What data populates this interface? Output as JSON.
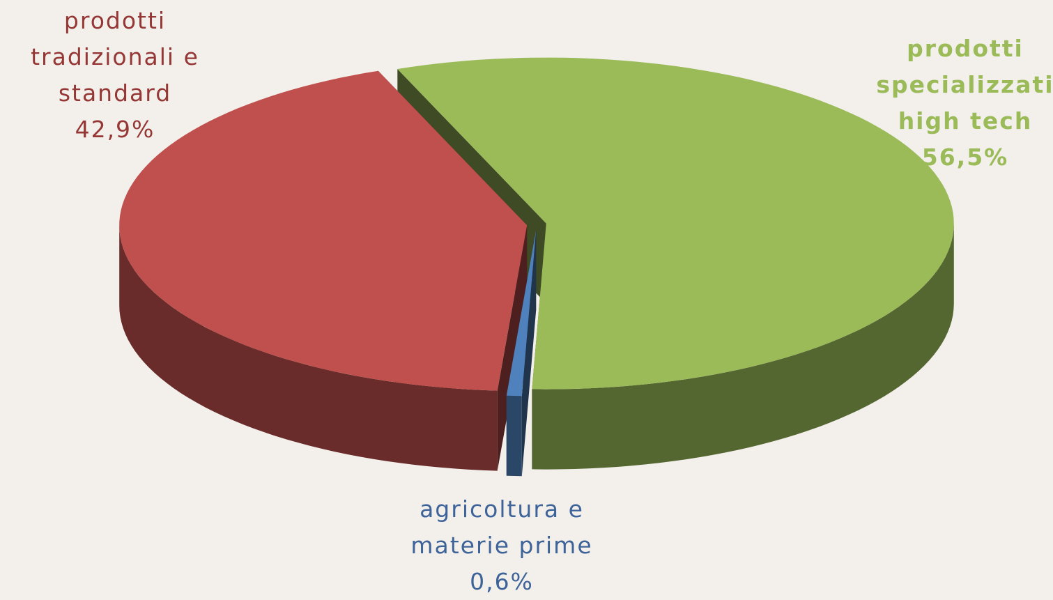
{
  "chart_data": {
    "type": "pie",
    "style": "3d",
    "categories": [
      "prodotti specializzati high tech",
      "agricoltura e materie prime",
      "prodotti tradizionali e standard"
    ],
    "values": [
      56.5,
      0.6,
      42.9
    ],
    "value_labels": [
      "56,5%",
      "0,6%",
      "42,9%"
    ],
    "colors": [
      "#9bbb59",
      "#4f81bd",
      "#c0504d"
    ]
  }
}
